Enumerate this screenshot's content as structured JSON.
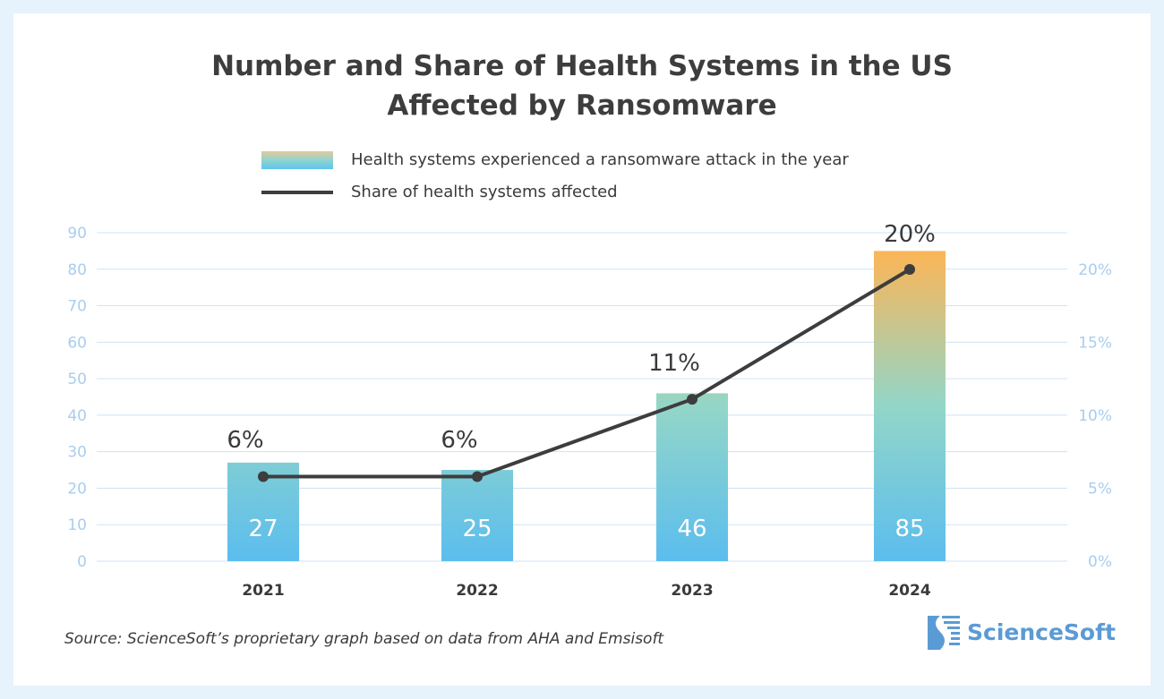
{
  "chart_data": {
    "type": "bar+line",
    "title": "Number and Share of Health Systems in the US Affected by Ransomware",
    "title_lines": [
      "Number and Share of Health Systems in the US",
      "Affected by Ransomware"
    ],
    "categories": [
      "2021",
      "2022",
      "2023",
      "2024"
    ],
    "series": [
      {
        "name": "Health systems experienced a ransomware attack in the year",
        "type": "bar",
        "axis": "left",
        "values": [
          27,
          25,
          46,
          85
        ],
        "labels": [
          "27",
          "25",
          "46",
          "85"
        ]
      },
      {
        "name": "Share of health systems affected",
        "type": "line",
        "axis": "right",
        "values": [
          5.8,
          5.8,
          11.1,
          20
        ],
        "labels": [
          "6%",
          "6%",
          "11%",
          "20%"
        ]
      }
    ],
    "y_left": {
      "range": [
        0,
        90
      ],
      "ticks": [
        "0",
        "10",
        "20",
        "30",
        "40",
        "50",
        "60",
        "70",
        "80",
        "90"
      ]
    },
    "y_right": {
      "range": [
        0,
        22.5
      ],
      "ticks": [
        "0%",
        "5%",
        "10%",
        "15%",
        "20%"
      ],
      "tick_values": [
        0,
        5,
        10,
        15,
        20
      ]
    },
    "grid": true,
    "legend_placement": "top",
    "colors": {
      "bar_bottom": "#5bbdee",
      "bar_mid": "#93d6c8",
      "bar_top": "#fdb556",
      "line": "#3d3d3d",
      "axis_text": "#a9cdef",
      "grid": "#cfe3f6"
    }
  },
  "source": "Source: ScienceSoft’s proprietary graph based on data from AHA and Emsisoft",
  "logo_text": "ScienceSoft"
}
